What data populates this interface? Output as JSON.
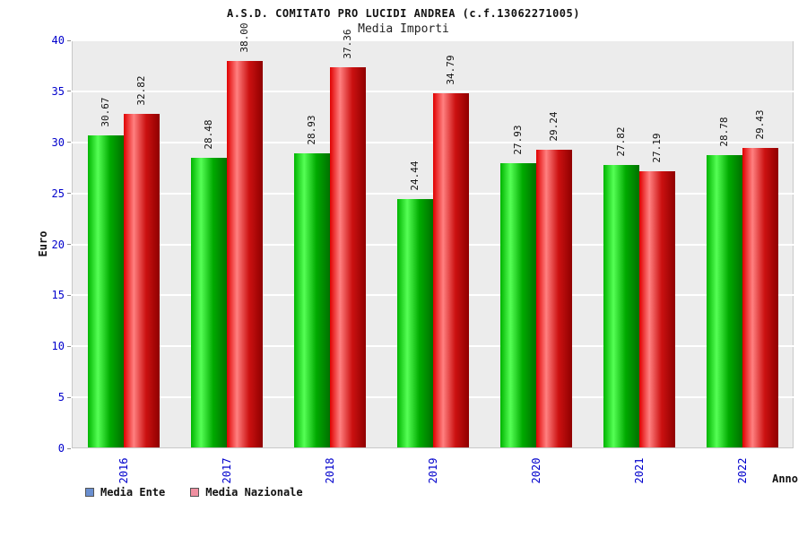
{
  "chart_data": {
    "type": "bar",
    "title": "A.S.D. COMITATO PRO LUCIDI ANDREA (c.f.13062271005)",
    "subtitle": "Media Importi",
    "xlabel": "Anno",
    "ylabel": "Euro",
    "ylim": [
      0,
      40
    ],
    "ytick_step": 5,
    "grid": "horizontal-white-on-gray",
    "legend_position": "bottom-left",
    "plot_bg": "#ececec",
    "axis_label_color": "#0000cc",
    "value_label_decimals": 2,
    "categories": [
      "2016",
      "2017",
      "2018",
      "2019",
      "2020",
      "2021",
      "2022"
    ],
    "series": [
      {
        "name": "Media Ente",
        "legend_color": "#6a8fd0",
        "bar_gradient": [
          "#00b400",
          "#55ff55",
          "#00aa00",
          "#007000"
        ],
        "values": [
          30.67,
          28.48,
          28.93,
          24.44,
          27.93,
          27.82,
          28.78
        ]
      },
      {
        "name": "Media Nazionale",
        "legend_color": "#ef8fa0",
        "bar_gradient": [
          "#e00000",
          "#ff8080",
          "#cc1111",
          "#8f0000"
        ],
        "values": [
          32.82,
          38.0,
          37.36,
          34.79,
          29.24,
          27.19,
          29.43
        ]
      }
    ]
  }
}
